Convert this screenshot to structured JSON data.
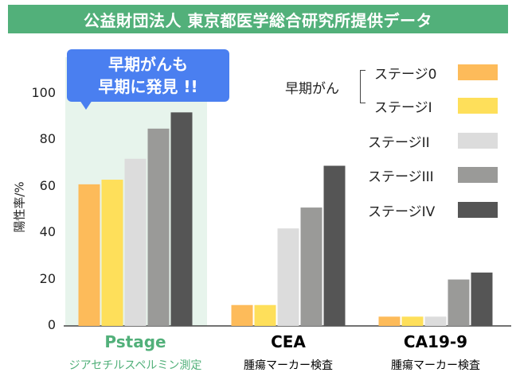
{
  "header": {
    "title": "公益財団法人 東京都医学総合研究所提供データ"
  },
  "callout": {
    "line1": "早期がんも",
    "line2": "早期に発見 !!"
  },
  "colors": {
    "header_bg": "#52b07a",
    "highlight_bg": "#e7f4ec",
    "callout_bg": "#4a7ff0",
    "pstage_label": "#52b07a"
  },
  "legend": {
    "group_label": "早期がん",
    "items": [
      {
        "label": "ステージ0",
        "color": "#fdbb5a"
      },
      {
        "label": "ステージI",
        "color": "#fedf5a"
      },
      {
        "label": "ステージII",
        "color": "#dcdcdc"
      },
      {
        "label": "ステージIII",
        "color": "#9a9a98"
      },
      {
        "label": "ステージIV",
        "color": "#555555"
      }
    ]
  },
  "chart_data": {
    "type": "bar",
    "ylabel": "陽性率/%",
    "ylim": [
      0,
      100
    ],
    "yticks": [
      0,
      20,
      40,
      60,
      80,
      100
    ],
    "categories": [
      "Pstage",
      "CEA",
      "CA19-9"
    ],
    "category_subtitles": [
      "ジアセチルスペルミン測定",
      "腫瘍マーカー検査",
      "腫瘍マーカー検査"
    ],
    "series": [
      {
        "name": "ステージ0",
        "values": [
          61,
          9,
          4
        ]
      },
      {
        "name": "ステージI",
        "values": [
          63,
          9,
          4
        ]
      },
      {
        "name": "ステージII",
        "values": [
          72,
          42,
          4
        ]
      },
      {
        "name": "ステージIII",
        "values": [
          85,
          51,
          20
        ]
      },
      {
        "name": "ステージIV",
        "values": [
          92,
          69,
          23
        ]
      }
    ]
  }
}
